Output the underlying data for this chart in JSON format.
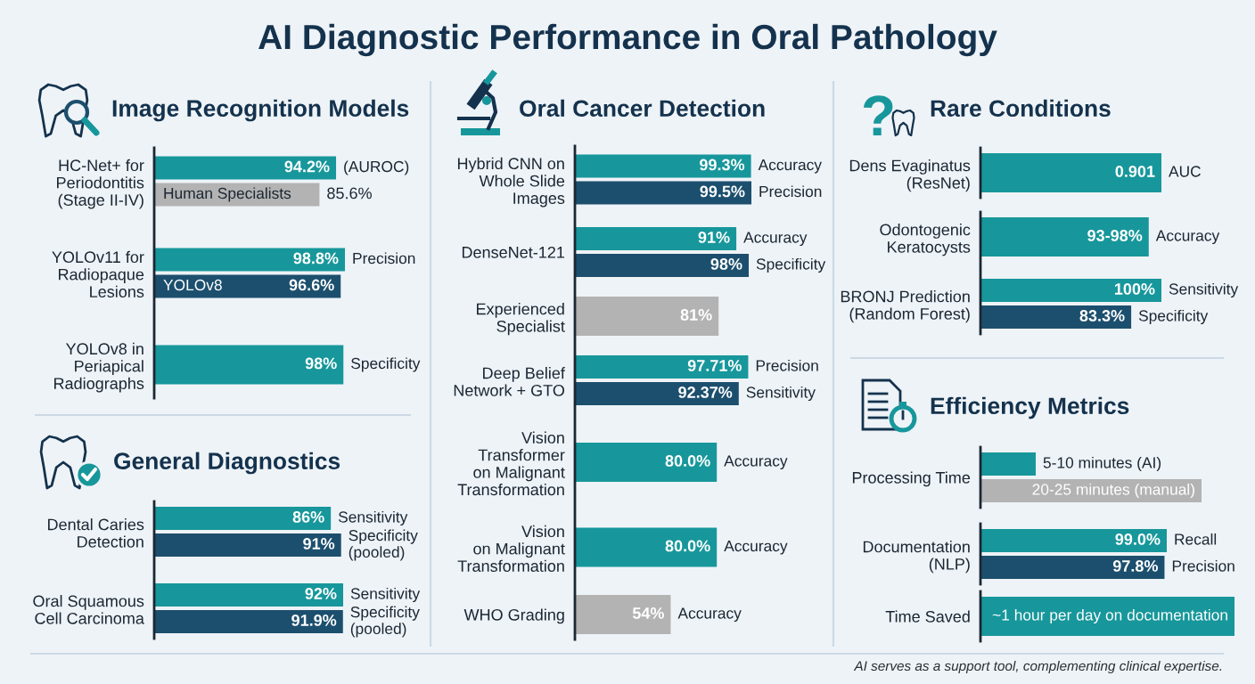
{
  "chart_data": [
    {
      "type": "bar",
      "orientation": "horizontal",
      "title": "AI Diagnostic Performance in Oral Pathology",
      "subtitle": "Image Recognition Models",
      "categories": [
        "HC-Net+ for\nPeriodontitis\n(Stage II-IV)",
        "YOLOv11 for\nRadiopaque\nLesions",
        "YOLOv8 in\nPeriapical\nRadiographs"
      ],
      "series": [
        {
          "name": "(AUROC)",
          "color": "#17979b",
          "values": [
            94.2,
            null,
            null
          ],
          "value_labels": [
            "94.2%",
            null,
            null
          ]
        },
        {
          "name": "Human Specialists",
          "color": "#b3b3b3",
          "values": [
            85.6,
            null,
            null
          ],
          "value_labels": [
            "85.6%",
            null,
            null
          ]
        },
        {
          "name": "Precision",
          "color": "#17979b",
          "values": [
            null,
            98.8,
            null
          ],
          "value_labels": [
            null,
            "98.8%",
            null
          ]
        },
        {
          "name": "YOLOv8",
          "color": "#1c4f6e",
          "values": [
            null,
            96.6,
            null
          ],
          "value_labels": [
            null,
            "96.6%",
            null
          ]
        },
        {
          "name": "Specificity",
          "color": "#17979b",
          "values": [
            null,
            null,
            98
          ],
          "value_labels": [
            null,
            null,
            "98%"
          ]
        }
      ],
      "tick_labels": "y"
    },
    {
      "type": "bar",
      "orientation": "horizontal",
      "title": "General Diagnostics",
      "categories": [
        "Dental Caries\nDetection",
        "Oral Squamous\nCell Carcinoma"
      ],
      "series": [
        {
          "name": "Sensitivity",
          "color": "#17979b",
          "values": [
            86,
            92
          ],
          "value_labels": [
            "86%",
            "92%"
          ]
        },
        {
          "name": "Specificity\n(pooled)",
          "color": "#1c4f6e",
          "values": [
            91,
            91.9
          ],
          "value_labels": [
            "91%",
            "91.9%"
          ]
        }
      ],
      "tick_labels": "y"
    },
    {
      "type": "bar",
      "orientation": "horizontal",
      "title": "Oral Cancer Detection",
      "categories": [
        "Hybrid CNN on\nWhole Slide\nImages",
        "DenseNet-121",
        "Experienced\nSpecialist",
        "Deep Belief\nNetwork + GTO",
        "Vision\nTransformer\non Malignant\nTransformation",
        "Vision\non Malignant\nTransformation",
        "WHO Grading"
      ],
      "series": [
        {
          "name": "Accuracy",
          "colors": [
            "#17979b",
            "#17979b",
            null,
            null,
            "#17979b",
            "#17979b",
            "#b3b3b3"
          ],
          "values": [
            99.3,
            91,
            null,
            null,
            80.0,
            80.0,
            54
          ],
          "value_labels": [
            "99.3%",
            "91%",
            null,
            null,
            "80.0%",
            "80.0%",
            "54%"
          ]
        },
        {
          "name": "Precision",
          "colors": [
            "#1c4f6e",
            null,
            null,
            "#17979b",
            null,
            null,
            null
          ],
          "values": [
            99.5,
            null,
            null,
            97.71,
            null,
            null,
            null
          ],
          "value_labels": [
            "99.5%",
            null,
            null,
            "97.71%",
            null,
            null,
            null
          ]
        },
        {
          "name": "Specificity",
          "color": "#1c4f6e",
          "values": [
            null,
            98,
            null,
            null,
            null,
            null,
            null
          ],
          "value_labels": [
            null,
            "98%",
            null,
            null,
            null,
            null,
            null
          ]
        },
        {
          "name": "Sensitivity",
          "color": "#1c4f6e",
          "values": [
            null,
            null,
            null,
            92.37,
            null,
            null,
            null
          ],
          "value_labels": [
            null,
            null,
            null,
            "92.37%",
            null,
            null,
            null
          ]
        },
        {
          "color": "#b3b3b3",
          "values": [
            null,
            null,
            81,
            null,
            null,
            null,
            null
          ],
          "value_labels": [
            null,
            null,
            "81%",
            null,
            null,
            null,
            null
          ]
        }
      ],
      "tick_labels": "y"
    },
    {
      "type": "bar",
      "orientation": "horizontal",
      "title": "Rare Conditions",
      "categories": [
        "Dens Evaginatus\n(ResNet)"
      ],
      "series": [
        {
          "name": "AUC",
          "color": "#17979b",
          "values": [
            0.901
          ],
          "value_labels": [
            "0.901"
          ]
        }
      ],
      "tick_labels": "y"
    },
    {
      "type": "bar",
      "orientation": "horizontal",
      "categories": [
        "Odontogenic\nKeratocysts",
        "BRONJ Prediction\n(Random Forest)"
      ],
      "series": [
        {
          "name": "Accuracy",
          "color": "#17979b",
          "values": [
            93,
            null
          ],
          "value_labels": [
            "93-98%",
            null
          ]
        },
        {
          "name": "Sensitivity",
          "color": "#17979b",
          "values": [
            null,
            100
          ],
          "value_labels": [
            null,
            "100%"
          ]
        },
        {
          "name": "Specificity",
          "color": "#1c4f6e",
          "values": [
            null,
            83.3
          ],
          "value_labels": [
            null,
            "83.3%"
          ]
        }
      ],
      "tick_labels": "y"
    },
    {
      "type": "bar",
      "orientation": "horizontal",
      "title": "Efficiency Metrics",
      "categories": [
        "Processing Time"
      ],
      "series": [
        {
          "color": "#17979b",
          "values": [
            5
          ],
          "value_labels": [
            "5-10 minutes (AI)"
          ]
        },
        {
          "color": "#b3b3b3",
          "values": [
            20
          ],
          "value_labels": [
            "20-25 minutes (manual)"
          ]
        }
      ],
      "tick_labels": "y"
    },
    {
      "type": "bar",
      "orientation": "horizontal",
      "categories": [
        "Documentation\n(NLP)"
      ],
      "series": [
        {
          "name": "Recall",
          "color": "#17979b",
          "values": [
            99.0
          ],
          "value_labels": [
            "99.0%"
          ]
        },
        {
          "name": "Precision",
          "color": "#1c4f6e",
          "values": [
            97.8
          ],
          "value_labels": [
            "97.8%"
          ]
        }
      ],
      "tick_labels": "y"
    },
    {
      "type": "bar",
      "orientation": "horizontal",
      "categories": [
        "Time Saved"
      ],
      "series": [
        {
          "color": "#17979b",
          "values": [
            1
          ],
          "value_labels": [
            "~1 hour per day on documentation"
          ]
        }
      ],
      "tick_labels": "y",
      "annotations": [
        "AI serves as a support tool, complementing clinical expertise."
      ]
    }
  ]
}
